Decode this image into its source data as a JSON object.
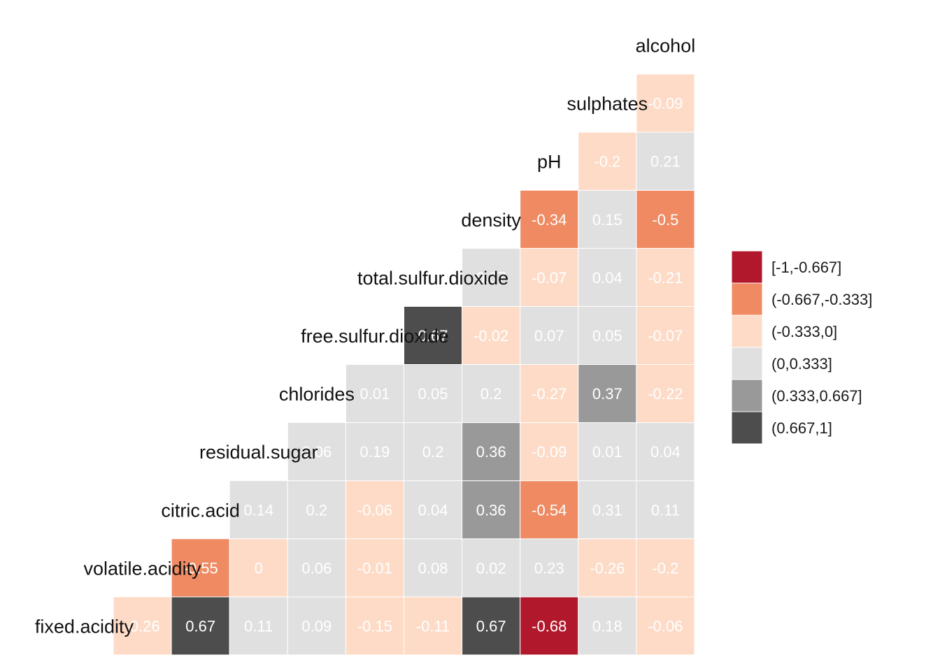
{
  "chart_data": {
    "type": "heatmap",
    "variables": [
      "fixed.acidity",
      "volatile.acidity",
      "citric.acid",
      "residual.sugar",
      "chlorides",
      "free.sulfur.dioxide",
      "total.sulfur.dioxide",
      "density",
      "pH",
      "sulphates",
      "alcohol"
    ],
    "rows": [
      {
        "label": "fixed.acidity",
        "values": [
          -0.26,
          0.67,
          0.11,
          0.09,
          -0.15,
          -0.11,
          0.67,
          -0.68,
          0.18,
          -0.06
        ]
      },
      {
        "label": "volatile.acidity",
        "values": [
          -0.55,
          0,
          0.06,
          -0.01,
          0.08,
          0.02,
          0.23,
          -0.26,
          -0.2
        ]
      },
      {
        "label": "citric.acid",
        "values": [
          0.14,
          0.2,
          -0.06,
          0.04,
          0.36,
          -0.54,
          0.31,
          0.11
        ]
      },
      {
        "label": "residual.sugar",
        "values": [
          0.06,
          0.19,
          0.2,
          0.36,
          -0.09,
          0.01,
          0.04
        ]
      },
      {
        "label": "chlorides",
        "values": [
          0.01,
          0.05,
          0.2,
          -0.27,
          0.37,
          -0.22
        ]
      },
      {
        "label": "free.sulfur.dioxide",
        "values": [
          0.67,
          -0.02,
          0.07,
          0.05,
          -0.07
        ]
      },
      {
        "label": "total.sulfur.dioxide",
        "values": [
          0.07,
          -0.07,
          0.04,
          -0.21
        ]
      },
      {
        "label": "density",
        "values": [
          -0.34,
          0.15,
          -0.5
        ]
      },
      {
        "label": "pH",
        "values": [
          -0.2,
          0.21
        ]
      },
      {
        "label": "sulphates",
        "values": [
          -0.09
        ]
      },
      {
        "label": "alcohol",
        "values": []
      }
    ],
    "legend": {
      "position": "right",
      "bins": [
        {
          "label": "[-1,-0.667]",
          "min": -1,
          "max": -0.667,
          "color": "#B2182B"
        },
        {
          "label": "(-0.667,-0.333]",
          "min": -0.667,
          "max": -0.333,
          "color": "#EF8A62"
        },
        {
          "label": "(-0.333,0]",
          "min": -0.333,
          "max": 0,
          "color": "#FDDBC7"
        },
        {
          "label": "(0,0.333]",
          "min": 0,
          "max": 0.333,
          "color": "#E0E0E0"
        },
        {
          "label": "(0.333,0.667]",
          "min": 0.333,
          "max": 0.667,
          "color": "#999999"
        },
        {
          "label": "(0.667,1]",
          "min": 0.667,
          "max": 1,
          "color": "#4D4D4D"
        }
      ]
    },
    "value_text_color": "#FFFFFF",
    "grid": false
  }
}
